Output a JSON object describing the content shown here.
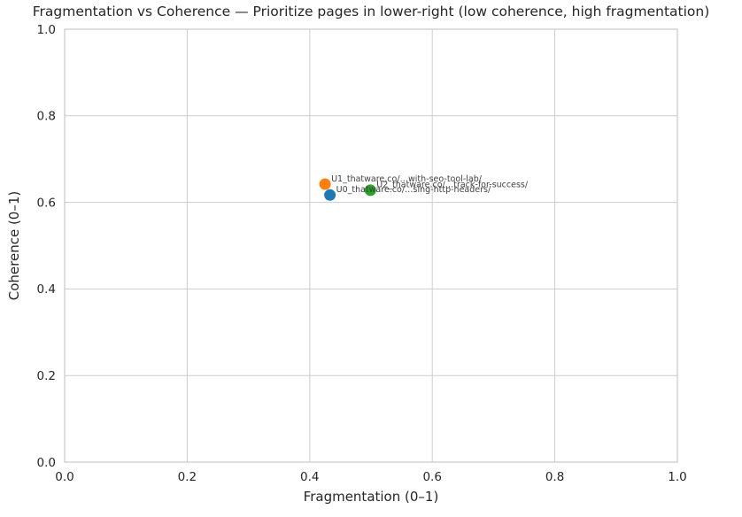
{
  "chart_data": {
    "type": "scatter",
    "title": "Fragmentation vs Coherence — Prioritize pages in lower-right (low coherence, high fragmentation)",
    "xlabel": "Fragmentation (0–1)",
    "ylabel": "Coherence (0–1)",
    "xlim": [
      0.0,
      1.0
    ],
    "ylim": [
      0.0,
      1.0
    ],
    "xticks": [
      0.0,
      0.2,
      0.4,
      0.6,
      0.8,
      1.0
    ],
    "yticks": [
      0.0,
      0.2,
      0.4,
      0.6,
      0.8,
      1.0
    ],
    "xtick_labels": [
      "0.0",
      "0.2",
      "0.4",
      "0.6",
      "0.8",
      "1.0"
    ],
    "ytick_labels": [
      "0.0",
      "0.2",
      "0.4",
      "0.6",
      "0.8",
      "1.0"
    ],
    "grid": true,
    "legend": false,
    "background_color": "#ffffff",
    "grid_color": "#cccccc",
    "text_color": "#262626",
    "points": [
      {
        "label": "U0_thatware.co/…sing-http-headers/",
        "x": 0.433,
        "y": 0.617,
        "color": "#1f77b4"
      },
      {
        "label": "U1_thatware.co/…with-seo-tool-lab/",
        "x": 0.425,
        "y": 0.642,
        "color": "#ff7f0e"
      },
      {
        "label": "U2_thatware.co/…track-for-success/",
        "x": 0.499,
        "y": 0.628,
        "color": "#2ca02c"
      }
    ]
  }
}
